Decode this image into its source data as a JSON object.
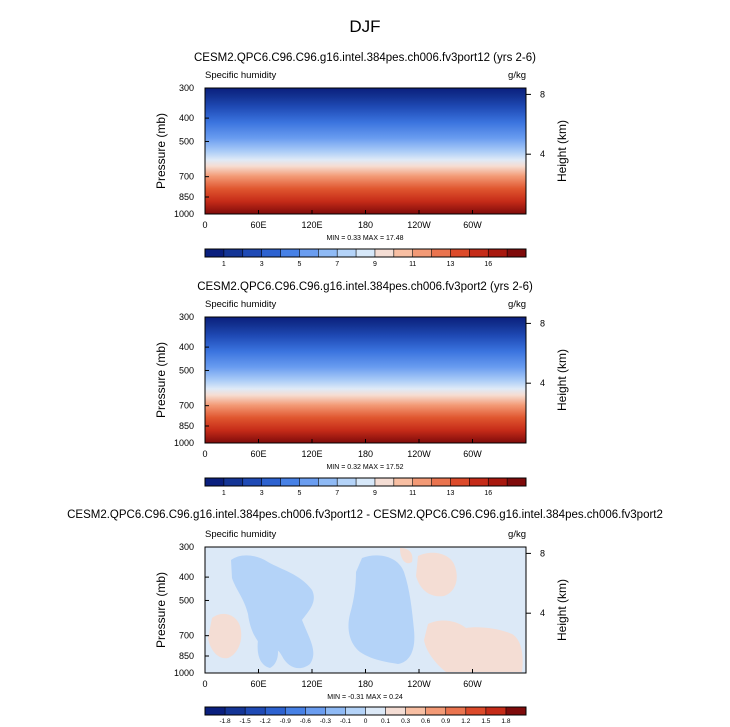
{
  "figure": {
    "title": "DJF",
    "variable_label": "Specific humidity",
    "units": "g/kg",
    "ylabel_left": "Pressure (mb)",
    "ylabel_right": "Height (km)"
  },
  "chart_data": [
    {
      "id": "p1",
      "type": "heatmap",
      "title": "CESM2.QPC6.C96.C96.g16.intel.384pes.ch006.fv3port12 (yrs 2-6)",
      "subtitle_left": "Specific humidity",
      "subtitle_right": "g/kg",
      "x_ticks": [
        "0",
        "60E",
        "120E",
        "180",
        "120W",
        "60W"
      ],
      "x_tick_values": [
        0,
        60,
        120,
        180,
        240,
        300
      ],
      "xlim": [
        0,
        360
      ],
      "y_ticks": [
        "300",
        "400",
        "500",
        "700",
        "850",
        "1000"
      ],
      "y_tick_values": [
        300,
        400,
        500,
        700,
        850,
        1000
      ],
      "ylim": [
        300,
        1000
      ],
      "height_ticks": [
        "8",
        "4"
      ],
      "height_tick_values": [
        8,
        4
      ],
      "stats": "MIN =  0.33  MAX =  17.48",
      "min": 0.33,
      "max": 17.48,
      "colorbar_levels": [
        "1",
        "3",
        "5",
        "7",
        "9",
        "11",
        "13",
        "16"
      ],
      "colorbar_colors": [
        "#0a1f7e",
        "#143596",
        "#1f4ab5",
        "#2d62d0",
        "#4781e6",
        "#6a9df0",
        "#8fbaf5",
        "#b4d3f8",
        "#d7e8f9",
        "#f4ddd4",
        "#f8bfa3",
        "#f39a76",
        "#ea744f",
        "#dc4a2a",
        "#c52b18",
        "#a8180e",
        "#7f0b0b"
      ]
    },
    {
      "id": "p2",
      "type": "heatmap",
      "title": "CESM2.QPC6.C96.C96.g16.intel.384pes.ch006.fv3port2 (yrs 2-6)",
      "subtitle_left": "Specific humidity",
      "subtitle_right": "g/kg",
      "x_ticks": [
        "0",
        "60E",
        "120E",
        "180",
        "120W",
        "60W"
      ],
      "x_tick_values": [
        0,
        60,
        120,
        180,
        240,
        300
      ],
      "xlim": [
        0,
        360
      ],
      "y_ticks": [
        "300",
        "400",
        "500",
        "700",
        "850",
        "1000"
      ],
      "y_tick_values": [
        300,
        400,
        500,
        700,
        850,
        1000
      ],
      "ylim": [
        300,
        1000
      ],
      "height_ticks": [
        "8",
        "4"
      ],
      "height_tick_values": [
        8,
        4
      ],
      "stats": "MIN =  0.32  MAX =  17.52",
      "min": 0.32,
      "max": 17.52,
      "colorbar_levels": [
        "1",
        "3",
        "5",
        "7",
        "9",
        "11",
        "13",
        "16"
      ],
      "colorbar_colors": [
        "#0a1f7e",
        "#143596",
        "#1f4ab5",
        "#2d62d0",
        "#4781e6",
        "#6a9df0",
        "#8fbaf5",
        "#b4d3f8",
        "#d7e8f9",
        "#f4ddd4",
        "#f8bfa3",
        "#f39a76",
        "#ea744f",
        "#dc4a2a",
        "#c52b18",
        "#a8180e",
        "#7f0b0b"
      ]
    },
    {
      "id": "p3",
      "type": "heatmap",
      "title": "CESM2.QPC6.C96.C96.g16.intel.384pes.ch006.fv3port12 - CESM2.QPC6.C96.C96.g16.intel.384pes.ch006.fv3port2",
      "subtitle_left": "Specific humidity",
      "subtitle_right": "g/kg",
      "x_ticks": [
        "0",
        "60E",
        "120E",
        "180",
        "120W",
        "60W"
      ],
      "x_tick_values": [
        0,
        60,
        120,
        180,
        240,
        300
      ],
      "xlim": [
        0,
        360
      ],
      "y_ticks": [
        "300",
        "400",
        "500",
        "700",
        "850",
        "1000"
      ],
      "y_tick_values": [
        300,
        400,
        500,
        700,
        850,
        1000
      ],
      "ylim": [
        300,
        1000
      ],
      "height_ticks": [
        "8",
        "4"
      ],
      "height_tick_values": [
        8,
        4
      ],
      "stats": "MIN = -0.31  MAX =  0.24",
      "min": -0.31,
      "max": 0.24,
      "background_color": "#dce9f7",
      "colorbar_levels": [
        "-1.8",
        "-1.5",
        "-1.2",
        "-0.9",
        "-0.6",
        "-0.3",
        "-0.1",
        "0",
        "0.1",
        "0.3",
        "0.6",
        "0.9",
        "1.2",
        "1.5",
        "1.8"
      ],
      "colorbar_colors": [
        "#0a1f7e",
        "#143596",
        "#1f4ab5",
        "#2d62d0",
        "#4781e6",
        "#6a9df0",
        "#8fbaf5",
        "#b4d3f8",
        "#dce9f7",
        "#f4ddd4",
        "#f8bfa3",
        "#f39a76",
        "#ea744f",
        "#dc4a2a",
        "#c52b18",
        "#7f0b0b"
      ],
      "anomalies": [
        {
          "sign": "negative",
          "level": "-0.1 to -0.3",
          "lon_range": [
            40,
            150
          ],
          "p_range": [
            300,
            900
          ]
        },
        {
          "sign": "negative",
          "level": "-0.1 to -0.3",
          "lon_range": [
            165,
            240
          ],
          "p_range": [
            320,
            840
          ]
        },
        {
          "sign": "negative",
          "level": "-0.1 to -0.3",
          "lon_range": [
            55,
            75
          ],
          "p_range": [
            630,
            910
          ]
        },
        {
          "sign": "positive",
          "level": "0.1 to 0.3",
          "lon_range": [
            5,
            40
          ],
          "p_range": [
            660,
            880
          ]
        },
        {
          "sign": "positive",
          "level": "0.1 to 0.3",
          "lon_range": [
            245,
            285
          ],
          "p_range": [
            330,
            510
          ]
        },
        {
          "sign": "positive",
          "level": "0.1 to 0.3",
          "lon_range": [
            225,
            355
          ],
          "p_range": [
            760,
            1000
          ]
        }
      ]
    }
  ]
}
